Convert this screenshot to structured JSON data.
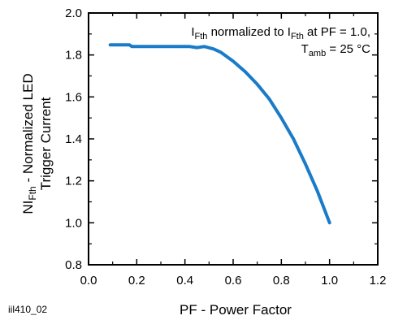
{
  "figure_id": "iil410_02",
  "colors": {
    "curve": "#1a7bc8",
    "axis": "#000000",
    "background": "#ffffff"
  },
  "chart_data": {
    "type": "line",
    "title": "",
    "xlabel": "PF - Power Factor",
    "ylabel": {
      "prefix": "NI",
      "prefix_sub": "Fth",
      "line1_rest": " - Normalized LED",
      "line2": "Trigger Current"
    },
    "xlim": [
      0.0,
      1.2
    ],
    "ylim": [
      0.8,
      2.0
    ],
    "x_ticks": [
      "0.0",
      "0.2",
      "0.4",
      "0.6",
      "0.8",
      "1.0",
      "1.2"
    ],
    "y_ticks": [
      "0.8",
      "1.0",
      "1.2",
      "1.4",
      "1.6",
      "1.8",
      "2.0"
    ],
    "grid": false,
    "annotation": {
      "line1": {
        "a": "I",
        "a_sub": "Fth",
        "b": " normalized to I",
        "b_sub": "Fth",
        "c": " at PF = 1.0,"
      },
      "line2": {
        "a": "T",
        "a_sub": "amb",
        "b": " = 25 °C"
      }
    },
    "series": [
      {
        "x": [
          0.09,
          0.17,
          0.18,
          0.25,
          0.35,
          0.42,
          0.45,
          0.48,
          0.52,
          0.55,
          0.6,
          0.65,
          0.7,
          0.75,
          0.8,
          0.85,
          0.9,
          0.95,
          1.0
        ],
        "y": [
          1.848,
          1.848,
          1.84,
          1.84,
          1.84,
          1.84,
          1.835,
          1.84,
          1.828,
          1.812,
          1.77,
          1.72,
          1.66,
          1.59,
          1.5,
          1.4,
          1.28,
          1.15,
          1.0
        ]
      }
    ]
  }
}
